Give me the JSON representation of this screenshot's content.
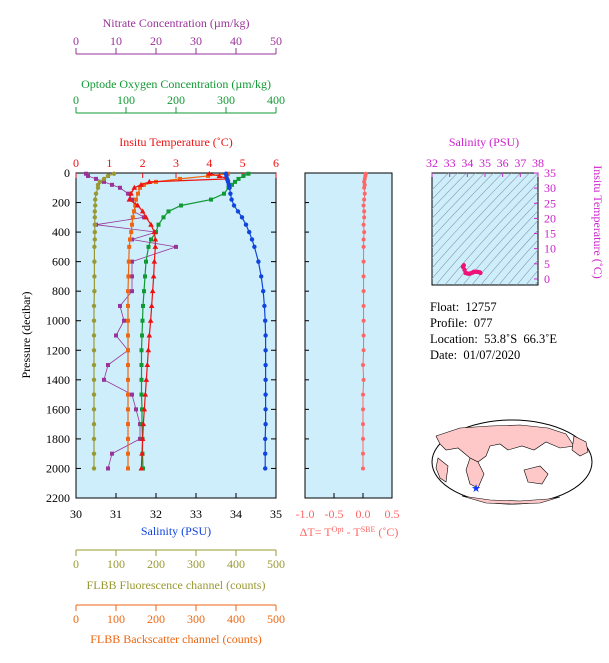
{
  "colors": {
    "nitrate": "#993399",
    "oxygen": "#119933",
    "temperature": "#ee1111",
    "salinity": "#1144dd",
    "fluorescence": "#999933",
    "backscatter": "#ee6611",
    "dT": "#ff6666",
    "plot_bg": "#cdeefa",
    "ts_contour": "#8899aa",
    "ts_axis": "#cc22cc",
    "ts_points": "#ee1177",
    "land": "#ffc8c8",
    "ocean": "#ffffff",
    "float_marker": "#1133ff"
  },
  "info": {
    "float_label": "Float:",
    "float_value": "12757",
    "profile_label": "Profile:",
    "profile_value": "077",
    "location_label": "Location:",
    "location_value": "53.8˚S  66.3˚E",
    "date_label": "Date:",
    "date_value": "01/07/2020"
  },
  "chart_data": [
    {
      "type": "line",
      "name": "profile",
      "ylabel": "Pressure (decibar)",
      "ylim": [
        0,
        2200
      ],
      "yticks": [
        0,
        200,
        400,
        600,
        800,
        1000,
        1200,
        1400,
        1600,
        1800,
        2000,
        2200
      ],
      "axes": {
        "salinity": {
          "label": "Salinity (PSU)",
          "lim": [
            30,
            35
          ],
          "ticks": [
            30,
            31,
            32,
            33,
            34,
            35
          ]
        },
        "temperature": {
          "label": "Insitu Temperature (˚C)",
          "lim": [
            0,
            6
          ],
          "ticks": [
            0,
            1,
            2,
            3,
            4,
            5,
            6
          ]
        },
        "oxygen": {
          "label": "Optode Oxygen Concentration (µm/kg)",
          "lim": [
            0,
            400
          ],
          "ticks": [
            0,
            100,
            200,
            300,
            400
          ]
        },
        "nitrate": {
          "label": "Nitrate Concentration (µm/kg)",
          "lim": [
            0,
            50
          ],
          "ticks": [
            0,
            10,
            20,
            30,
            40,
            50
          ]
        },
        "fluorescence": {
          "label": "FLBB Fluorescence channel (counts)",
          "lim": [
            0,
            500
          ],
          "ticks": [
            0,
            100,
            200,
            300,
            400,
            500
          ]
        },
        "backscatter": {
          "label": "FLBB Backscatter channel (counts)",
          "lim": [
            0,
            500
          ],
          "ticks": [
            0,
            100,
            200,
            300,
            400,
            500
          ]
        }
      },
      "pressure": [
        5,
        20,
        40,
        60,
        80,
        100,
        140,
        180,
        220,
        260,
        300,
        350,
        400,
        450,
        500,
        600,
        700,
        800,
        900,
        1000,
        1100,
        1200,
        1300,
        1400,
        1500,
        1600,
        1700,
        1800,
        1900,
        2000
      ],
      "series": [
        {
          "key": "salinity",
          "values": [
            33.75,
            33.76,
            33.78,
            33.8,
            33.82,
            33.84,
            33.86,
            33.89,
            33.95,
            34.05,
            34.15,
            34.25,
            34.33,
            34.4,
            34.46,
            34.56,
            34.63,
            34.68,
            34.71,
            34.73,
            34.74,
            34.74,
            34.74,
            34.74,
            34.74,
            34.74,
            34.74,
            34.73,
            34.73,
            34.73
          ]
        },
        {
          "key": "temperature",
          "values": [
            4.0,
            4.3,
            4.55,
            2.2,
            1.95,
            1.75,
            1.65,
            1.6,
            1.85,
            2.0,
            2.1,
            2.25,
            2.35,
            2.38,
            2.38,
            2.35,
            2.33,
            2.3,
            2.27,
            2.24,
            2.2,
            2.17,
            2.14,
            2.11,
            2.08,
            2.05,
            2.02,
            2.0,
            1.98,
            1.96
          ]
        },
        {
          "key": "oxygen",
          "values": [
            345,
            335,
            325,
            318,
            312,
            305,
            296,
            270,
            210,
            185,
            175,
            165,
            160,
            150,
            145,
            140,
            138,
            136,
            134,
            133,
            132,
            131,
            131,
            131,
            131,
            132,
            132,
            133,
            133,
            134
          ]
        },
        {
          "key": "nitrate",
          "values": [
            2.5,
            3,
            5,
            7,
            9,
            11,
            13,
            14,
            15,
            14.5,
            17,
            5,
            20,
            14,
            25,
            14,
            14,
            14,
            11,
            12,
            10,
            13,
            8,
            7,
            14,
            15,
            16,
            16,
            9,
            8
          ]
        },
        {
          "key": "fluorescence",
          "values": [
            95,
            80,
            70,
            60,
            55,
            55,
            50,
            48,
            48,
            47,
            47,
            47,
            47,
            47,
            46,
            46,
            46,
            46,
            45,
            45,
            45,
            45,
            45,
            45,
            45,
            45,
            45,
            45,
            45,
            45
          ]
        },
        {
          "key": "backscatter",
          "values": [
            380,
            330,
            260,
            200,
            170,
            160,
            155,
            150,
            148,
            145,
            142,
            140,
            138,
            135,
            133,
            132,
            131,
            130,
            130,
            130,
            130,
            130,
            130,
            130,
            130,
            130,
            130,
            130,
            130,
            130
          ]
        }
      ]
    },
    {
      "type": "scatter",
      "name": "delta-T",
      "xlabel": "ΔT= T^Opt - T^SBE (˚C)",
      "xlim": [
        -1.0,
        0.5
      ],
      "xticks": [
        -1.0,
        -0.5,
        0.0,
        0.5
      ],
      "ylim": [
        0,
        2200
      ],
      "pressure": [
        5,
        20,
        40,
        60,
        80,
        100,
        140,
        180,
        220,
        260,
        300,
        350,
        400,
        450,
        500,
        600,
        700,
        800,
        900,
        1000,
        1100,
        1200,
        1300,
        1400,
        1500,
        1600,
        1700,
        1800,
        1900,
        2000
      ],
      "values": [
        0.05,
        0.04,
        0.03,
        0.02,
        0.03,
        0.02,
        0.03,
        0.02,
        0.01,
        0.02,
        0.02,
        0.01,
        0.02,
        0.01,
        0.01,
        0.01,
        0.01,
        0.01,
        0.01,
        0.01,
        0.01,
        0.01,
        0.0,
        0.01,
        0.0,
        0.0,
        0.0,
        0.0,
        0.0,
        0.0
      ]
    },
    {
      "type": "scatter",
      "name": "T-S diagram",
      "xlabel": "Salinity (PSU)",
      "ylabel": "Insitu Temperature (˚C)",
      "xlim": [
        32,
        38
      ],
      "ylim": [
        -2,
        35
      ],
      "xticks": [
        32,
        33,
        34,
        35,
        36,
        37,
        38
      ],
      "yticks": [
        0,
        5,
        10,
        15,
        20,
        25,
        30,
        35
      ],
      "salinity": [
        33.75,
        33.8,
        33.84,
        33.9,
        34.0,
        34.1,
        34.2,
        34.3,
        34.35,
        34.4,
        34.5,
        34.6,
        34.7,
        34.74
      ],
      "temperature": [
        4.0,
        4.5,
        3.0,
        2.0,
        1.8,
        1.7,
        1.9,
        2.1,
        2.3,
        2.4,
        2.35,
        2.3,
        2.2,
        2.0
      ]
    }
  ]
}
